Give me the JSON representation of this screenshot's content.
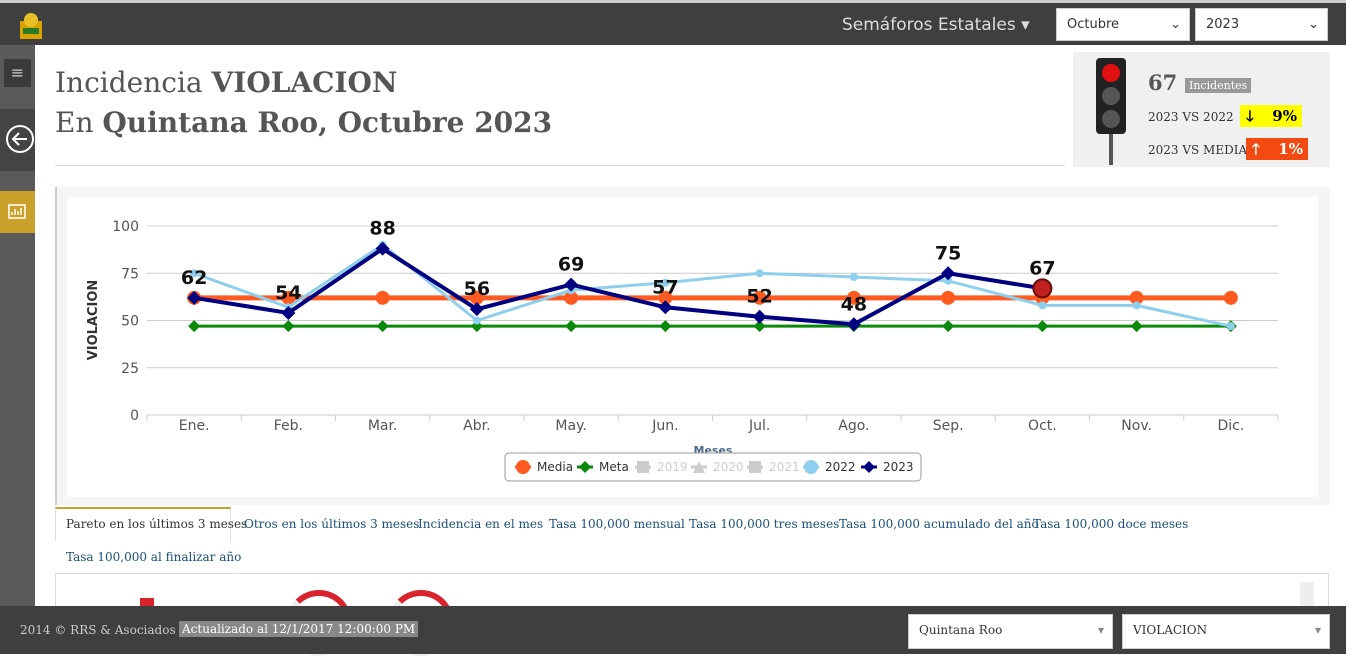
{
  "header": {
    "menu": "Semáforos Estatales",
    "month": "Octubre",
    "year": "2023"
  },
  "title": {
    "line1_prefix": "Incidencia",
    "line1_bold": "VIOLACION",
    "line2_prefix": "En",
    "line2_bold": "Quintana Roo, Octubre 2023"
  },
  "indicator": {
    "count": 67,
    "count_label": "Incidentes",
    "vs_prev_label": "2023 VS 2022",
    "vs_prev": "9%",
    "vs_media_label": "2023 VS MEDIA",
    "vs_media": "1%"
  },
  "chart_data": {
    "type": "line",
    "ylabel": "VIOLACION",
    "xlabel": "Meses",
    "categories": [
      "Ene.",
      "Feb.",
      "Mar.",
      "Abr.",
      "May.",
      "Jun.",
      "Jul.",
      "Ago.",
      "Sep.",
      "Oct.",
      "Nov.",
      "Dic."
    ],
    "ylim": [
      0,
      100
    ],
    "yticks": [
      0,
      25,
      50,
      75,
      100
    ],
    "grid": true,
    "legend": "bottom",
    "highlight_index": 9,
    "series": [
      {
        "name": "Media",
        "color": "#ff5a1f",
        "marker": "circle",
        "visible": true,
        "values": [
          62,
          62,
          62,
          62,
          62,
          62,
          62,
          62,
          62,
          62,
          62,
          62
        ]
      },
      {
        "name": "Meta",
        "color": "#0a8a0a",
        "marker": "diamond",
        "visible": true,
        "values": [
          47,
          47,
          47,
          47,
          47,
          47,
          47,
          47,
          47,
          47,
          47,
          47
        ]
      },
      {
        "name": "2019",
        "color": "#cccccc",
        "marker": "square",
        "visible": false,
        "values": [
          null,
          null,
          null,
          null,
          null,
          null,
          null,
          null,
          null,
          null,
          null,
          null
        ]
      },
      {
        "name": "2020",
        "color": "#cccccc",
        "marker": "triangle",
        "visible": false,
        "values": [
          null,
          null,
          null,
          null,
          null,
          null,
          null,
          null,
          null,
          null,
          null,
          null
        ]
      },
      {
        "name": "2021",
        "color": "#cccccc",
        "marker": "square",
        "visible": false,
        "values": [
          null,
          null,
          null,
          null,
          null,
          null,
          null,
          null,
          null,
          null,
          null,
          null
        ]
      },
      {
        "name": "2022",
        "color": "#8ecfee",
        "marker": "circle",
        "visible": true,
        "values": [
          75,
          57,
          90,
          50,
          66,
          70,
          75,
          73,
          71,
          58,
          58,
          47
        ]
      },
      {
        "name": "2023",
        "color": "#000080",
        "marker": "diamond",
        "visible": true,
        "data_labels": true,
        "values": [
          62,
          54,
          88,
          56,
          69,
          57,
          52,
          48,
          75,
          67,
          null,
          null
        ]
      }
    ]
  },
  "tabs": [
    "Pareto en los últimos 3 meses",
    "Otros en los últimos 3 meses",
    "Incidencia en el mes",
    "Tasa 100,000 mensual",
    "Tasa 100,000 tres meses",
    "Tasa 100,000 acumulado del año",
    "Tasa 100,000 doce meses",
    "Tasa 100,000 al finalizar año"
  ],
  "footer": {
    "copyright": "2014 © RRS & Asociados S.C.",
    "updated": "Actualizado al 12/1/2017 12:00:00 PM",
    "state": "Quintana Roo",
    "crime": "VIOLACION"
  }
}
